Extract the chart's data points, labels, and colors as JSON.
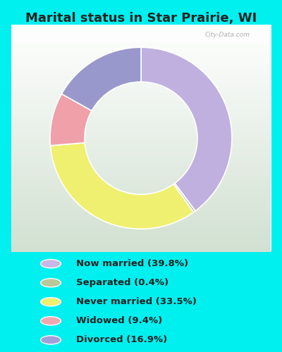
{
  "title": "Marital status in Star Prairie, WI",
  "title_fontsize": 13,
  "title_fontweight": "bold",
  "bg_cyan": "#00EFEF",
  "bg_chart": "#d8eed8",
  "categories": [
    "Now married",
    "Separated",
    "Never married",
    "Widowed",
    "Divorced"
  ],
  "values": [
    39.8,
    0.4,
    33.5,
    9.4,
    16.9
  ],
  "colors": [
    "#c0b0e0",
    "#b8c8a0",
    "#f0f070",
    "#f0a0a8",
    "#9898cc"
  ],
  "legend_labels": [
    "Now married (39.8%)",
    "Separated (0.4%)",
    "Never married (33.5%)",
    "Widowed (9.4%)",
    "Divorced (16.9%)"
  ],
  "legend_colors": [
    "#c8b8e8",
    "#b8c898",
    "#f0f070",
    "#f0a8b0",
    "#a0a0d8"
  ],
  "figsize": [
    4.0,
    5.0
  ],
  "dpi": 100
}
